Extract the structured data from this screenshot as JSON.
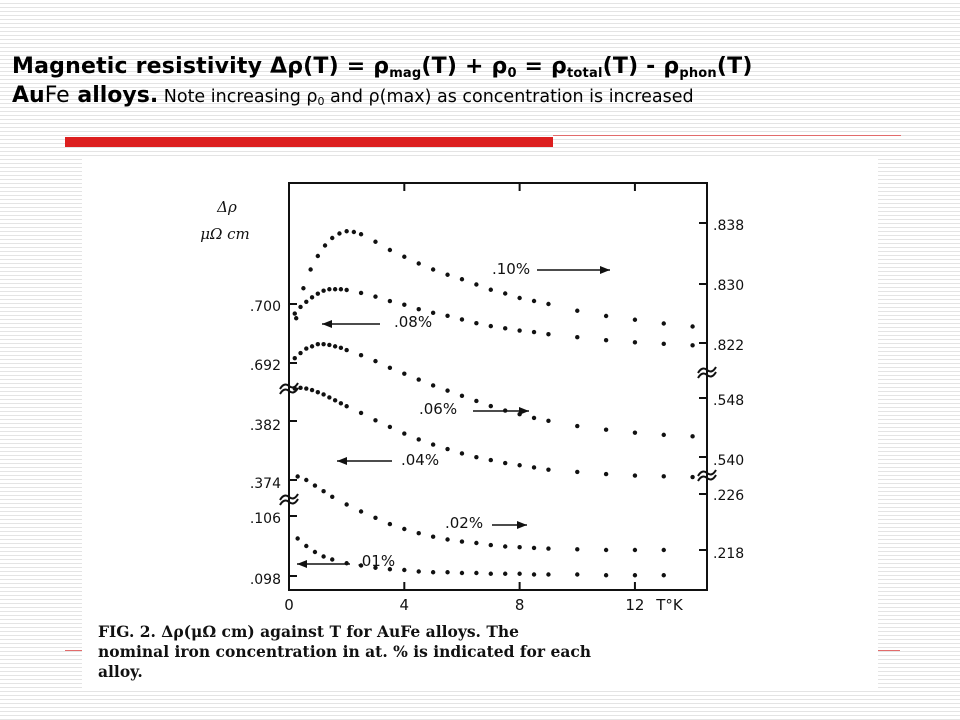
{
  "slide": {
    "title_line1": {
      "text_a": "Magnetic resistivity Δρ(T) = ρ",
      "sub_mag": "mag",
      "text_b": "(T) + ρ",
      "sub_zero": "0",
      "text_c": " = ρ",
      "sub_total": "total",
      "text_d": "(T) -  ρ",
      "sub_phon": "phon",
      "text_e": "(T)"
    },
    "title_line2": {
      "part_au": "Au",
      "part_fe": "Fe",
      "part_alloys": " alloys.",
      "note_a": " Note increasing ρ",
      "note_sub": "0",
      "note_b": " and ρ(max) as concentration is increased"
    },
    "colors": {
      "accent": "#dc1f1f",
      "ink": "#111111",
      "stripe": "#e4e4e4"
    }
  },
  "caption": {
    "line1": "FIG. 2.   Δρ(μΩ cm) against T for AuFe alloys.   The",
    "line2": "nominal iron concentration in at. % is indicated for each",
    "line3": "alloy."
  },
  "chart_data": {
    "type": "scatter",
    "ylabel_symbol": "Δρ",
    "ylabel_unit": "μΩ cm",
    "xlabel": "T°K",
    "x_ticks": [
      "0",
      "4",
      "8",
      "12"
    ],
    "xlim": [
      0,
      14.5
    ],
    "series": [
      {
        "name": ".10%",
        "axis": "right",
        "y_ticks": [
          ".838",
          ".830",
          ".822"
        ],
        "x": [
          0.25,
          0.5,
          0.75,
          1.0,
          1.25,
          1.5,
          1.75,
          2.0,
          2.25,
          2.5,
          3.0,
          3.5,
          4.0,
          4.5,
          5.0,
          5.5,
          6.0,
          6.5,
          7.0,
          7.5,
          8.0,
          8.5,
          9.0,
          10.0,
          11.0,
          12.0,
          13.0,
          14.0
        ],
        "y": [
          0.8253,
          0.8293,
          0.8318,
          0.8336,
          0.835,
          0.836,
          0.8366,
          0.8369,
          0.8368,
          0.8365,
          0.8355,
          0.8344,
          0.8335,
          0.8326,
          0.8318,
          0.8311,
          0.8305,
          0.8298,
          0.8291,
          0.8286,
          0.828,
          0.8276,
          0.8272,
          0.8263,
          0.8256,
          0.8251,
          0.8246,
          0.8242
        ]
      },
      {
        "name": ".08%",
        "axis": "left",
        "y_ticks": [
          ".700",
          ".692"
        ],
        "x": [
          0.2,
          0.4,
          0.6,
          0.8,
          1.0,
          1.2,
          1.4,
          1.6,
          1.8,
          2.0,
          2.5,
          3.0,
          3.5,
          4.0,
          4.5,
          5.0,
          5.5,
          6.0,
          6.5,
          7.0,
          7.5,
          8.0,
          8.5,
          9.0,
          10.0,
          11.0,
          12.0,
          13.0,
          14.0
        ],
        "y": [
          0.6987,
          0.6996,
          0.7003,
          0.7009,
          0.7014,
          0.7018,
          0.702,
          0.702,
          0.702,
          0.7019,
          0.7015,
          0.701,
          0.7004,
          0.6999,
          0.6993,
          0.6988,
          0.6984,
          0.6979,
          0.6974,
          0.697,
          0.6967,
          0.6964,
          0.6962,
          0.6959,
          0.6955,
          0.6951,
          0.6948,
          0.6946,
          0.6944
        ]
      },
      {
        "name": ".06%",
        "axis": "right",
        "y_ticks": [
          ".548",
          ".540"
        ],
        "x": [
          0.2,
          0.4,
          0.6,
          0.8,
          1.0,
          1.2,
          1.4,
          1.6,
          1.8,
          2.0,
          2.5,
          3.0,
          3.5,
          4.0,
          4.5,
          5.0,
          5.5,
          6.0,
          6.5,
          7.0,
          7.5,
          8.0,
          8.5,
          9.0,
          10.0,
          11.0,
          12.0,
          13.0,
          14.0
        ],
        "y": [
          0.5534,
          0.5541,
          0.5547,
          0.555,
          0.5553,
          0.5553,
          0.5552,
          0.555,
          0.5548,
          0.5545,
          0.5538,
          0.553,
          0.5521,
          0.5513,
          0.5505,
          0.5497,
          0.549,
          0.5483,
          0.5476,
          0.5469,
          0.5463,
          0.5458,
          0.5453,
          0.5449,
          0.5442,
          0.5437,
          0.5433,
          0.543,
          0.5428
        ]
      },
      {
        "name": ".04%",
        "axis": "left",
        "y_ticks": [
          ".382",
          ".374"
        ],
        "x": [
          0.2,
          0.4,
          0.6,
          0.8,
          1.0,
          1.2,
          1.4,
          1.6,
          1.8,
          2.0,
          2.5,
          3.0,
          3.5,
          4.0,
          4.5,
          5.0,
          5.5,
          6.0,
          6.5,
          7.0,
          7.5,
          8.0,
          8.5,
          9.0,
          10.0,
          11.0,
          12.0,
          13.0,
          14.0
        ],
        "y": [
          0.3864,
          0.3865,
          0.3864,
          0.3862,
          0.3859,
          0.3856,
          0.3852,
          0.3848,
          0.3844,
          0.384,
          0.3831,
          0.3821,
          0.3812,
          0.3803,
          0.3795,
          0.3788,
          0.3782,
          0.3776,
          0.3771,
          0.3767,
          0.3763,
          0.376,
          0.3757,
          0.3754,
          0.3751,
          0.3748,
          0.3746,
          0.3745,
          0.3744
        ]
      },
      {
        "name": ".02%",
        "axis": "right",
        "y_ticks": [
          ".226",
          ".218"
        ],
        "x": [
          0.3,
          0.6,
          0.9,
          1.2,
          1.5,
          2.0,
          2.5,
          3.0,
          3.5,
          4.0,
          4.5,
          5.0,
          5.5,
          6.0,
          6.5,
          7.0,
          7.5,
          8.0,
          8.5,
          9.0,
          10.0,
          11.0,
          12.0,
          13.0
        ],
        "y": [
          0.2285,
          0.228,
          0.2272,
          0.2264,
          0.2256,
          0.2245,
          0.2235,
          0.2226,
          0.2217,
          0.221,
          0.2204,
          0.2199,
          0.2195,
          0.2192,
          0.219,
          0.2187,
          0.2185,
          0.2184,
          0.2183,
          0.2182,
          0.2181,
          0.218,
          0.218,
          0.218
        ]
      },
      {
        "name": ".01%",
        "axis": "left",
        "y_ticks": [
          ".106",
          ".098"
        ],
        "x": [
          0.3,
          0.6,
          0.9,
          1.2,
          1.5,
          2.0,
          2.5,
          3.0,
          3.5,
          4.0,
          4.5,
          5.0,
          5.5,
          6.0,
          6.5,
          7.0,
          7.5,
          8.0,
          8.5,
          9.0,
          10.0,
          11.0,
          12.0,
          13.0
        ],
        "y": [
          0.103,
          0.102,
          0.1012,
          0.1006,
          0.1002,
          0.0997,
          0.0994,
          0.0991,
          0.0989,
          0.0988,
          0.0986,
          0.0985,
          0.0985,
          0.0984,
          0.0984,
          0.0983,
          0.0983,
          0.0983,
          0.0982,
          0.0982,
          0.0982,
          0.0981,
          0.0981,
          0.0981
        ]
      }
    ],
    "annotations": [
      {
        "label": ".10%",
        "arrow": "right",
        "at_x": 12.0
      },
      {
        "label": ".08%",
        "arrow": "left",
        "at_x": 0.6
      },
      {
        "label": ".06%",
        "arrow": "right",
        "at_x": 9.0
      },
      {
        "label": ".04%",
        "arrow": "left",
        "at_x": 1.4
      },
      {
        "label": ".02%",
        "arrow": "right",
        "at_x": 9.0
      },
      {
        "label": ".01%",
        "arrow": "left",
        "at_x": 0.3
      }
    ],
    "grid": false,
    "legend": "none"
  }
}
